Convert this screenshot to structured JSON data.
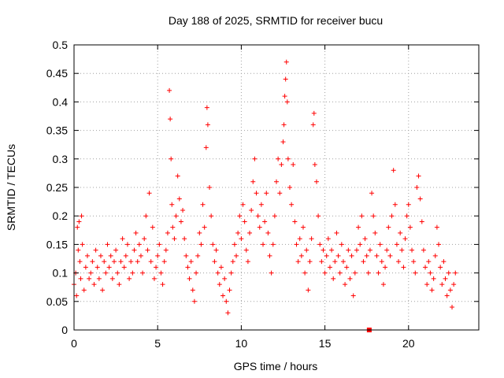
{
  "chart_data": {
    "type": "scatter",
    "title": "Day 188 of 2025, SRMTID for receiver bucu",
    "xlabel": "GPS time / hours",
    "ylabel": "SRMTID / TECUs",
    "xlim": [
      0,
      24.2
    ],
    "ylim": [
      0,
      0.5
    ],
    "xticks": [
      0,
      5,
      10,
      15,
      20
    ],
    "yticks": [
      0,
      0.05,
      0.1,
      0.15,
      0.2,
      0.25,
      0.3,
      0.35,
      0.4,
      0.45,
      0.5
    ],
    "xtick_labels": [
      "0",
      "5",
      "10",
      "15",
      "20"
    ],
    "ytick_labels": [
      "0",
      "0.05",
      "0.1",
      "0.15",
      "0.2",
      "0.25",
      "0.3",
      "0.35",
      "0.4",
      "0.45",
      "0.5"
    ],
    "grid": true,
    "series": [
      {
        "name": "SRMTID",
        "marker": "+",
        "color": "#ff0000",
        "points": [
          [
            0.0,
            0.08
          ],
          [
            0.1,
            0.1
          ],
          [
            0.15,
            0.06
          ],
          [
            0.2,
            0.18
          ],
          [
            0.25,
            0.14
          ],
          [
            0.3,
            0.19
          ],
          [
            0.35,
            0.12
          ],
          [
            0.4,
            0.09
          ],
          [
            0.45,
            0.2
          ],
          [
            0.5,
            0.15
          ],
          [
            0.6,
            0.07
          ],
          [
            0.7,
            0.11
          ],
          [
            0.8,
            0.13
          ],
          [
            0.9,
            0.09
          ],
          [
            1.0,
            0.1
          ],
          [
            1.1,
            0.12
          ],
          [
            1.2,
            0.08
          ],
          [
            1.3,
            0.14
          ],
          [
            1.4,
            0.11
          ],
          [
            1.5,
            0.09
          ],
          [
            1.6,
            0.13
          ],
          [
            1.7,
            0.07
          ],
          [
            1.8,
            0.12
          ],
          [
            1.9,
            0.1
          ],
          [
            2.0,
            0.15
          ],
          [
            2.1,
            0.11
          ],
          [
            2.2,
            0.13
          ],
          [
            2.3,
            0.09
          ],
          [
            2.4,
            0.12
          ],
          [
            2.5,
            0.14
          ],
          [
            2.6,
            0.1
          ],
          [
            2.7,
            0.08
          ],
          [
            2.8,
            0.12
          ],
          [
            2.9,
            0.16
          ],
          [
            3.0,
            0.11
          ],
          [
            3.1,
            0.13
          ],
          [
            3.2,
            0.15
          ],
          [
            3.3,
            0.09
          ],
          [
            3.4,
            0.12
          ],
          [
            3.5,
            0.1
          ],
          [
            3.6,
            0.14
          ],
          [
            3.7,
            0.17
          ],
          [
            3.8,
            0.12
          ],
          [
            3.9,
            0.15
          ],
          [
            4.0,
            0.13
          ],
          [
            4.1,
            0.1
          ],
          [
            4.2,
            0.16
          ],
          [
            4.3,
            0.2
          ],
          [
            4.4,
            0.14
          ],
          [
            4.5,
            0.24
          ],
          [
            4.6,
            0.12
          ],
          [
            4.7,
            0.18
          ],
          [
            4.8,
            0.09
          ],
          [
            4.9,
            0.11
          ],
          [
            5.0,
            0.13
          ],
          [
            5.1,
            0.15
          ],
          [
            5.2,
            0.1
          ],
          [
            5.3,
            0.08
          ],
          [
            5.4,
            0.12
          ],
          [
            5.5,
            0.14
          ],
          [
            5.6,
            0.17
          ],
          [
            5.7,
            0.42
          ],
          [
            5.75,
            0.37
          ],
          [
            5.8,
            0.3
          ],
          [
            5.85,
            0.22
          ],
          [
            5.9,
            0.18
          ],
          [
            6.0,
            0.16
          ],
          [
            6.1,
            0.2
          ],
          [
            6.2,
            0.27
          ],
          [
            6.3,
            0.23
          ],
          [
            6.4,
            0.19
          ],
          [
            6.5,
            0.21
          ],
          [
            6.6,
            0.16
          ],
          [
            6.7,
            0.13
          ],
          [
            6.8,
            0.11
          ],
          [
            6.9,
            0.09
          ],
          [
            7.0,
            0.12
          ],
          [
            7.1,
            0.07
          ],
          [
            7.2,
            0.05
          ],
          [
            7.3,
            0.1
          ],
          [
            7.4,
            0.13
          ],
          [
            7.5,
            0.17
          ],
          [
            7.6,
            0.15
          ],
          [
            7.7,
            0.22
          ],
          [
            7.8,
            0.18
          ],
          [
            7.9,
            0.32
          ],
          [
            7.95,
            0.39
          ],
          [
            8.0,
            0.36
          ],
          [
            8.1,
            0.25
          ],
          [
            8.2,
            0.2
          ],
          [
            8.3,
            0.15
          ],
          [
            8.4,
            0.12
          ],
          [
            8.5,
            0.14
          ],
          [
            8.6,
            0.1
          ],
          [
            8.7,
            0.08
          ],
          [
            8.8,
            0.11
          ],
          [
            8.9,
            0.06
          ],
          [
            9.0,
            0.09
          ],
          [
            9.1,
            0.05
          ],
          [
            9.2,
            0.03
          ],
          [
            9.3,
            0.07
          ],
          [
            9.4,
            0.1
          ],
          [
            9.5,
            0.12
          ],
          [
            9.6,
            0.15
          ],
          [
            9.7,
            0.13
          ],
          [
            9.8,
            0.17
          ],
          [
            9.9,
            0.2
          ],
          [
            10.0,
            0.16
          ],
          [
            10.1,
            0.22
          ],
          [
            10.2,
            0.19
          ],
          [
            10.3,
            0.14
          ],
          [
            10.4,
            0.12
          ],
          [
            10.5,
            0.17
          ],
          [
            10.6,
            0.21
          ],
          [
            10.7,
            0.26
          ],
          [
            10.8,
            0.3
          ],
          [
            10.9,
            0.24
          ],
          [
            11.0,
            0.2
          ],
          [
            11.1,
            0.18
          ],
          [
            11.2,
            0.22
          ],
          [
            11.3,
            0.15
          ],
          [
            11.4,
            0.19
          ],
          [
            11.5,
            0.24
          ],
          [
            11.6,
            0.17
          ],
          [
            11.7,
            0.13
          ],
          [
            11.8,
            0.1
          ],
          [
            11.9,
            0.15
          ],
          [
            12.0,
            0.2
          ],
          [
            12.1,
            0.26
          ],
          [
            12.2,
            0.3
          ],
          [
            12.3,
            0.24
          ],
          [
            12.4,
            0.29
          ],
          [
            12.5,
            0.33
          ],
          [
            12.55,
            0.36
          ],
          [
            12.6,
            0.41
          ],
          [
            12.65,
            0.44
          ],
          [
            12.7,
            0.47
          ],
          [
            12.75,
            0.4
          ],
          [
            12.8,
            0.3
          ],
          [
            12.9,
            0.25
          ],
          [
            13.0,
            0.22
          ],
          [
            13.1,
            0.29
          ],
          [
            13.2,
            0.19
          ],
          [
            13.3,
            0.15
          ],
          [
            13.4,
            0.12
          ],
          [
            13.5,
            0.16
          ],
          [
            13.6,
            0.13
          ],
          [
            13.7,
            0.18
          ],
          [
            13.8,
            0.1
          ],
          [
            13.9,
            0.14
          ],
          [
            14.0,
            0.07
          ],
          [
            14.1,
            0.12
          ],
          [
            14.2,
            0.16
          ],
          [
            14.3,
            0.36
          ],
          [
            14.35,
            0.38
          ],
          [
            14.4,
            0.29
          ],
          [
            14.5,
            0.26
          ],
          [
            14.6,
            0.2
          ],
          [
            14.7,
            0.15
          ],
          [
            14.8,
            0.12
          ],
          [
            14.9,
            0.14
          ],
          [
            15.0,
            0.1
          ],
          [
            15.1,
            0.13
          ],
          [
            15.2,
            0.16
          ],
          [
            15.3,
            0.11
          ],
          [
            15.4,
            0.14
          ],
          [
            15.5,
            0.09
          ],
          [
            15.6,
            0.12
          ],
          [
            15.7,
            0.17
          ],
          [
            15.8,
            0.13
          ],
          [
            15.9,
            0.1
          ],
          [
            16.0,
            0.15
          ],
          [
            16.1,
            0.12
          ],
          [
            16.2,
            0.08
          ],
          [
            16.3,
            0.11
          ],
          [
            16.4,
            0.14
          ],
          [
            16.5,
            0.09
          ],
          [
            16.6,
            0.13
          ],
          [
            16.7,
            0.06
          ],
          [
            16.8,
            0.1
          ],
          [
            16.9,
            0.14
          ],
          [
            17.0,
            0.18
          ],
          [
            17.1,
            0.15
          ],
          [
            17.2,
            0.2
          ],
          [
            17.3,
            0.12
          ],
          [
            17.4,
            0.16
          ],
          [
            17.5,
            0.13
          ],
          [
            17.6,
            0.1
          ],
          [
            17.7,
            0.14
          ],
          [
            17.8,
            0.24
          ],
          [
            17.9,
            0.2
          ],
          [
            18.0,
            0.17
          ],
          [
            18.1,
            0.13
          ],
          [
            18.2,
            0.1
          ],
          [
            18.3,
            0.15
          ],
          [
            18.4,
            0.12
          ],
          [
            18.5,
            0.08
          ],
          [
            18.6,
            0.11
          ],
          [
            18.7,
            0.14
          ],
          [
            18.8,
            0.18
          ],
          [
            18.9,
            0.13
          ],
          [
            19.0,
            0.2
          ],
          [
            19.1,
            0.28
          ],
          [
            19.2,
            0.22
          ],
          [
            19.3,
            0.15
          ],
          [
            19.4,
            0.12
          ],
          [
            19.5,
            0.17
          ],
          [
            19.6,
            0.14
          ],
          [
            19.7,
            0.11
          ],
          [
            19.8,
            0.16
          ],
          [
            19.9,
            0.2
          ],
          [
            20.0,
            0.22
          ],
          [
            20.1,
            0.18
          ],
          [
            20.2,
            0.14
          ],
          [
            20.3,
            0.12
          ],
          [
            20.4,
            0.1
          ],
          [
            20.5,
            0.25
          ],
          [
            20.6,
            0.27
          ],
          [
            20.7,
            0.23
          ],
          [
            20.8,
            0.19
          ],
          [
            20.9,
            0.14
          ],
          [
            21.0,
            0.11
          ],
          [
            21.1,
            0.08
          ],
          [
            21.2,
            0.12
          ],
          [
            21.3,
            0.1
          ],
          [
            21.4,
            0.07
          ],
          [
            21.5,
            0.09
          ],
          [
            21.6,
            0.13
          ],
          [
            21.7,
            0.18
          ],
          [
            21.8,
            0.15
          ],
          [
            21.9,
            0.11
          ],
          [
            22.0,
            0.08
          ],
          [
            22.1,
            0.12
          ],
          [
            22.2,
            0.09
          ],
          [
            22.3,
            0.06
          ],
          [
            22.4,
            0.1
          ],
          [
            22.5,
            0.07
          ],
          [
            22.6,
            0.04
          ],
          [
            22.7,
            0.08
          ],
          [
            22.8,
            0.1
          ]
        ]
      }
    ],
    "outlier_marker": {
      "x": 17.65,
      "y": 0.0,
      "marker": "square"
    }
  }
}
